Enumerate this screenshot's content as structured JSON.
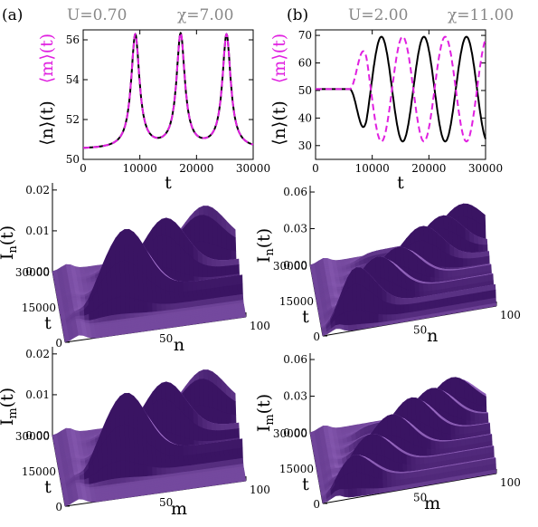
{
  "colors": {
    "n": "#000000",
    "m": "#e020e0",
    "header": "#888888",
    "surface_dark": "#3a1463",
    "surface_mid": "#6a34b0",
    "surface_light": "#b08ae6"
  },
  "panels": [
    {
      "label": "(a)",
      "param_u": "U=0.70",
      "param_chi": "χ=7.00"
    },
    {
      "label": "(b)",
      "param_u": "U=2.00",
      "param_chi": "χ=11.00"
    }
  ],
  "chart_data": [
    {
      "type": "line",
      "panel": "(a)",
      "xlabel": "t",
      "ylabel_n": "⟨n⟩(t)",
      "ylabel_m": "⟨m⟩(t)",
      "xlim": [
        0,
        30000
      ],
      "ylim": [
        50,
        56.5
      ],
      "xticks": [
        0,
        10000,
        20000,
        30000
      ],
      "yticks": [
        50,
        52,
        54,
        56
      ],
      "baseline": 50.5,
      "peak": 56.2,
      "peak_times": [
        9200,
        17200,
        25300
      ],
      "peak_width": 900,
      "series": [
        {
          "name": "⟨n⟩(t)",
          "style": "solid"
        },
        {
          "name": "⟨m⟩(t)",
          "style": "dashed"
        }
      ]
    },
    {
      "type": "line",
      "panel": "(b)",
      "xlabel": "t",
      "ylabel_n": "⟨n⟩(t)",
      "ylabel_m": "⟨m⟩(t)",
      "xlim": [
        0,
        30000
      ],
      "ylim": [
        25,
        72
      ],
      "xticks": [
        0,
        10000,
        20000,
        30000
      ],
      "yticks": [
        30,
        40,
        50,
        60,
        70
      ],
      "flat_until": 6000,
      "level": 50.5,
      "period": 7500,
      "max_amplitude": 19,
      "series": [
        {
          "name": "⟨n⟩(t)",
          "style": "solid"
        },
        {
          "name": "⟨m⟩(t)",
          "style": "dashed"
        }
      ]
    },
    {
      "type": "surface",
      "panel": "(a)",
      "zlabel": "I_n(t)",
      "zsub": "n",
      "xlabel": "n",
      "ylabel": "t",
      "zticks": [
        "0.00",
        "0.01",
        "0.02"
      ],
      "tticks": [
        "0",
        "15000",
        "30000"
      ],
      "xticks": [
        "50",
        "100"
      ],
      "xlim": [
        0,
        100
      ],
      "tlim": [
        0,
        30000
      ],
      "zmax": 0.022,
      "peak_times": [
        9200,
        17200,
        25300
      ],
      "peak_heights": [
        0.021,
        0.017,
        0.014
      ]
    },
    {
      "type": "surface",
      "panel": "(b)",
      "zlabel": "I_n(t)",
      "zsub": "n",
      "xlabel": "n",
      "ylabel": "t",
      "zticks": [
        "0.00",
        "0.03",
        "0.06"
      ],
      "tticks": [
        "0",
        "15000",
        "30000"
      ],
      "xticks": [
        "50",
        "100"
      ],
      "xlim": [
        0,
        100
      ],
      "tlim": [
        0,
        30000
      ],
      "zmax": 0.062,
      "peak_times": [
        3000,
        8500,
        13000,
        18000,
        22500,
        27000
      ],
      "peak_heights": [
        0.045,
        0.04,
        0.036,
        0.038,
        0.035,
        0.033
      ]
    },
    {
      "type": "surface",
      "panel": "(a)",
      "zlabel": "I_m(t)",
      "zsub": "m",
      "xlabel": "m",
      "ylabel": "t",
      "zticks": [
        "0.00",
        "0.01",
        "0.02"
      ],
      "tticks": [
        "0",
        "15000",
        "30000"
      ],
      "xticks": [
        "50",
        "100"
      ],
      "xlim": [
        0,
        100
      ],
      "tlim": [
        0,
        30000
      ],
      "zmax": 0.022,
      "peak_times": [
        9200,
        17200,
        25300
      ],
      "peak_heights": [
        0.021,
        0.017,
        0.014
      ]
    },
    {
      "type": "surface",
      "panel": "(b)",
      "zlabel": "I_m(t)",
      "zsub": "m",
      "xlabel": "m",
      "ylabel": "t",
      "zticks": [
        "0.00",
        "0.03",
        "0.06"
      ],
      "tticks": [
        "0",
        "15000",
        "30000"
      ],
      "xticks": [
        "50",
        "100"
      ],
      "xlim": [
        0,
        100
      ],
      "tlim": [
        0,
        30000
      ],
      "zmax": 0.062,
      "peak_times": [
        2500,
        7000,
        11500,
        16000,
        20500,
        25000
      ],
      "peak_heights": [
        0.032,
        0.036,
        0.04,
        0.042,
        0.038,
        0.035
      ]
    }
  ]
}
